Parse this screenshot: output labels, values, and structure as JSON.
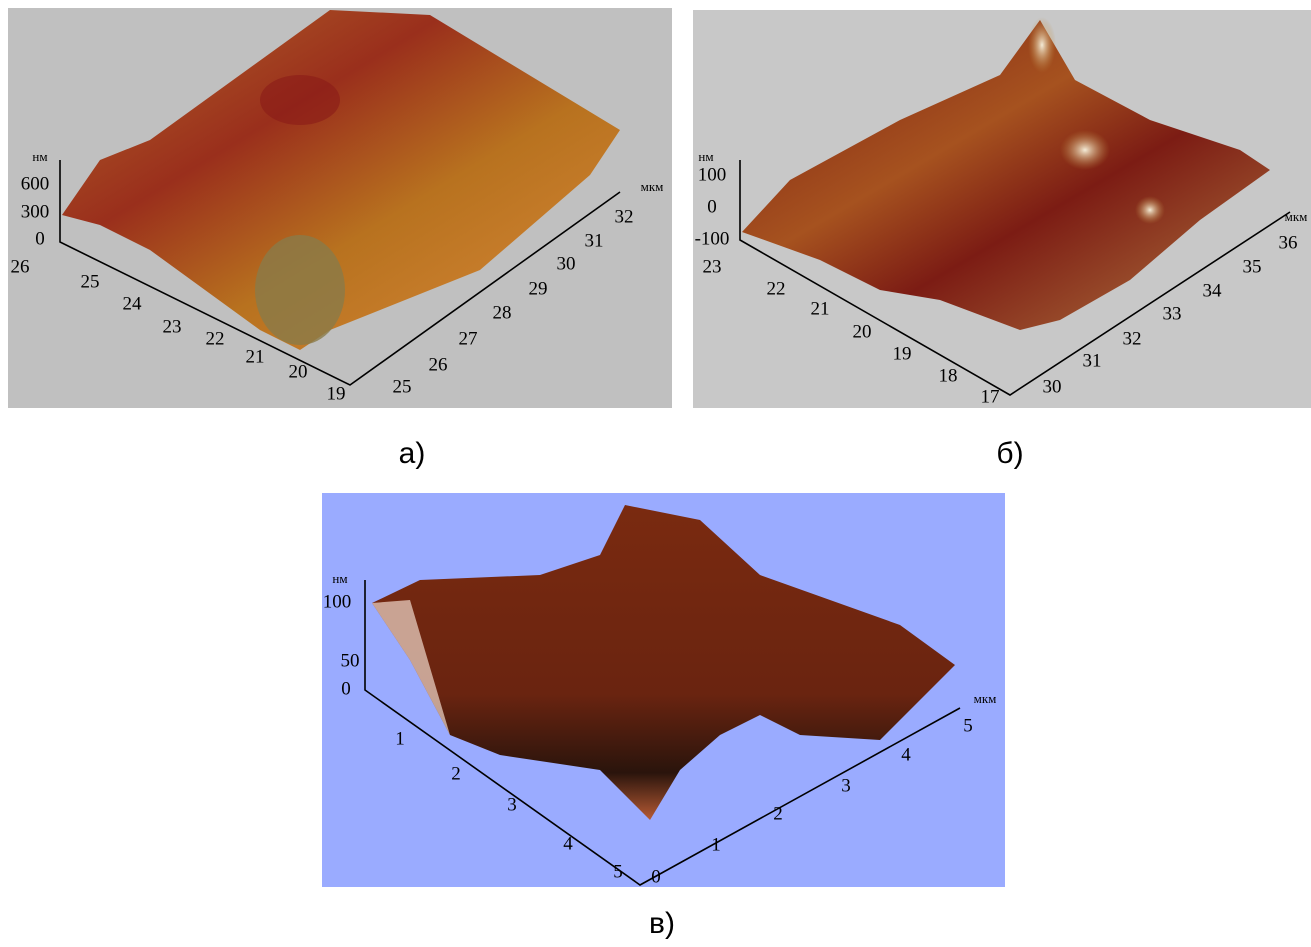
{
  "panels": [
    {
      "caption": "а)",
      "z_unit": "нм",
      "z_ticks": [
        "0",
        "300",
        "600"
      ],
      "x_ticks": [
        "26",
        "25",
        "24",
        "23",
        "22",
        "21",
        "20",
        "19"
      ],
      "y_unit": "мкм",
      "y_ticks": [
        "25",
        "26",
        "27",
        "28",
        "29",
        "30",
        "31",
        "32"
      ]
    },
    {
      "caption": "б)",
      "z_unit": "нм",
      "z_ticks": [
        "-100",
        "0",
        "100"
      ],
      "x_ticks": [
        "23",
        "22",
        "21",
        "20",
        "19",
        "18",
        "17"
      ],
      "y_unit": "мкм",
      "y_ticks": [
        "30",
        "31",
        "32",
        "33",
        "34",
        "35",
        "36"
      ]
    },
    {
      "caption": "в)",
      "z_unit": "нм",
      "z_ticks": [
        "0",
        "50",
        "100"
      ],
      "x_ticks": [
        "1",
        "2",
        "3",
        "4",
        "5"
      ],
      "y_unit": "мкм",
      "y_ticks": [
        "0",
        "1",
        "2",
        "3",
        "4",
        "5"
      ]
    }
  ]
}
